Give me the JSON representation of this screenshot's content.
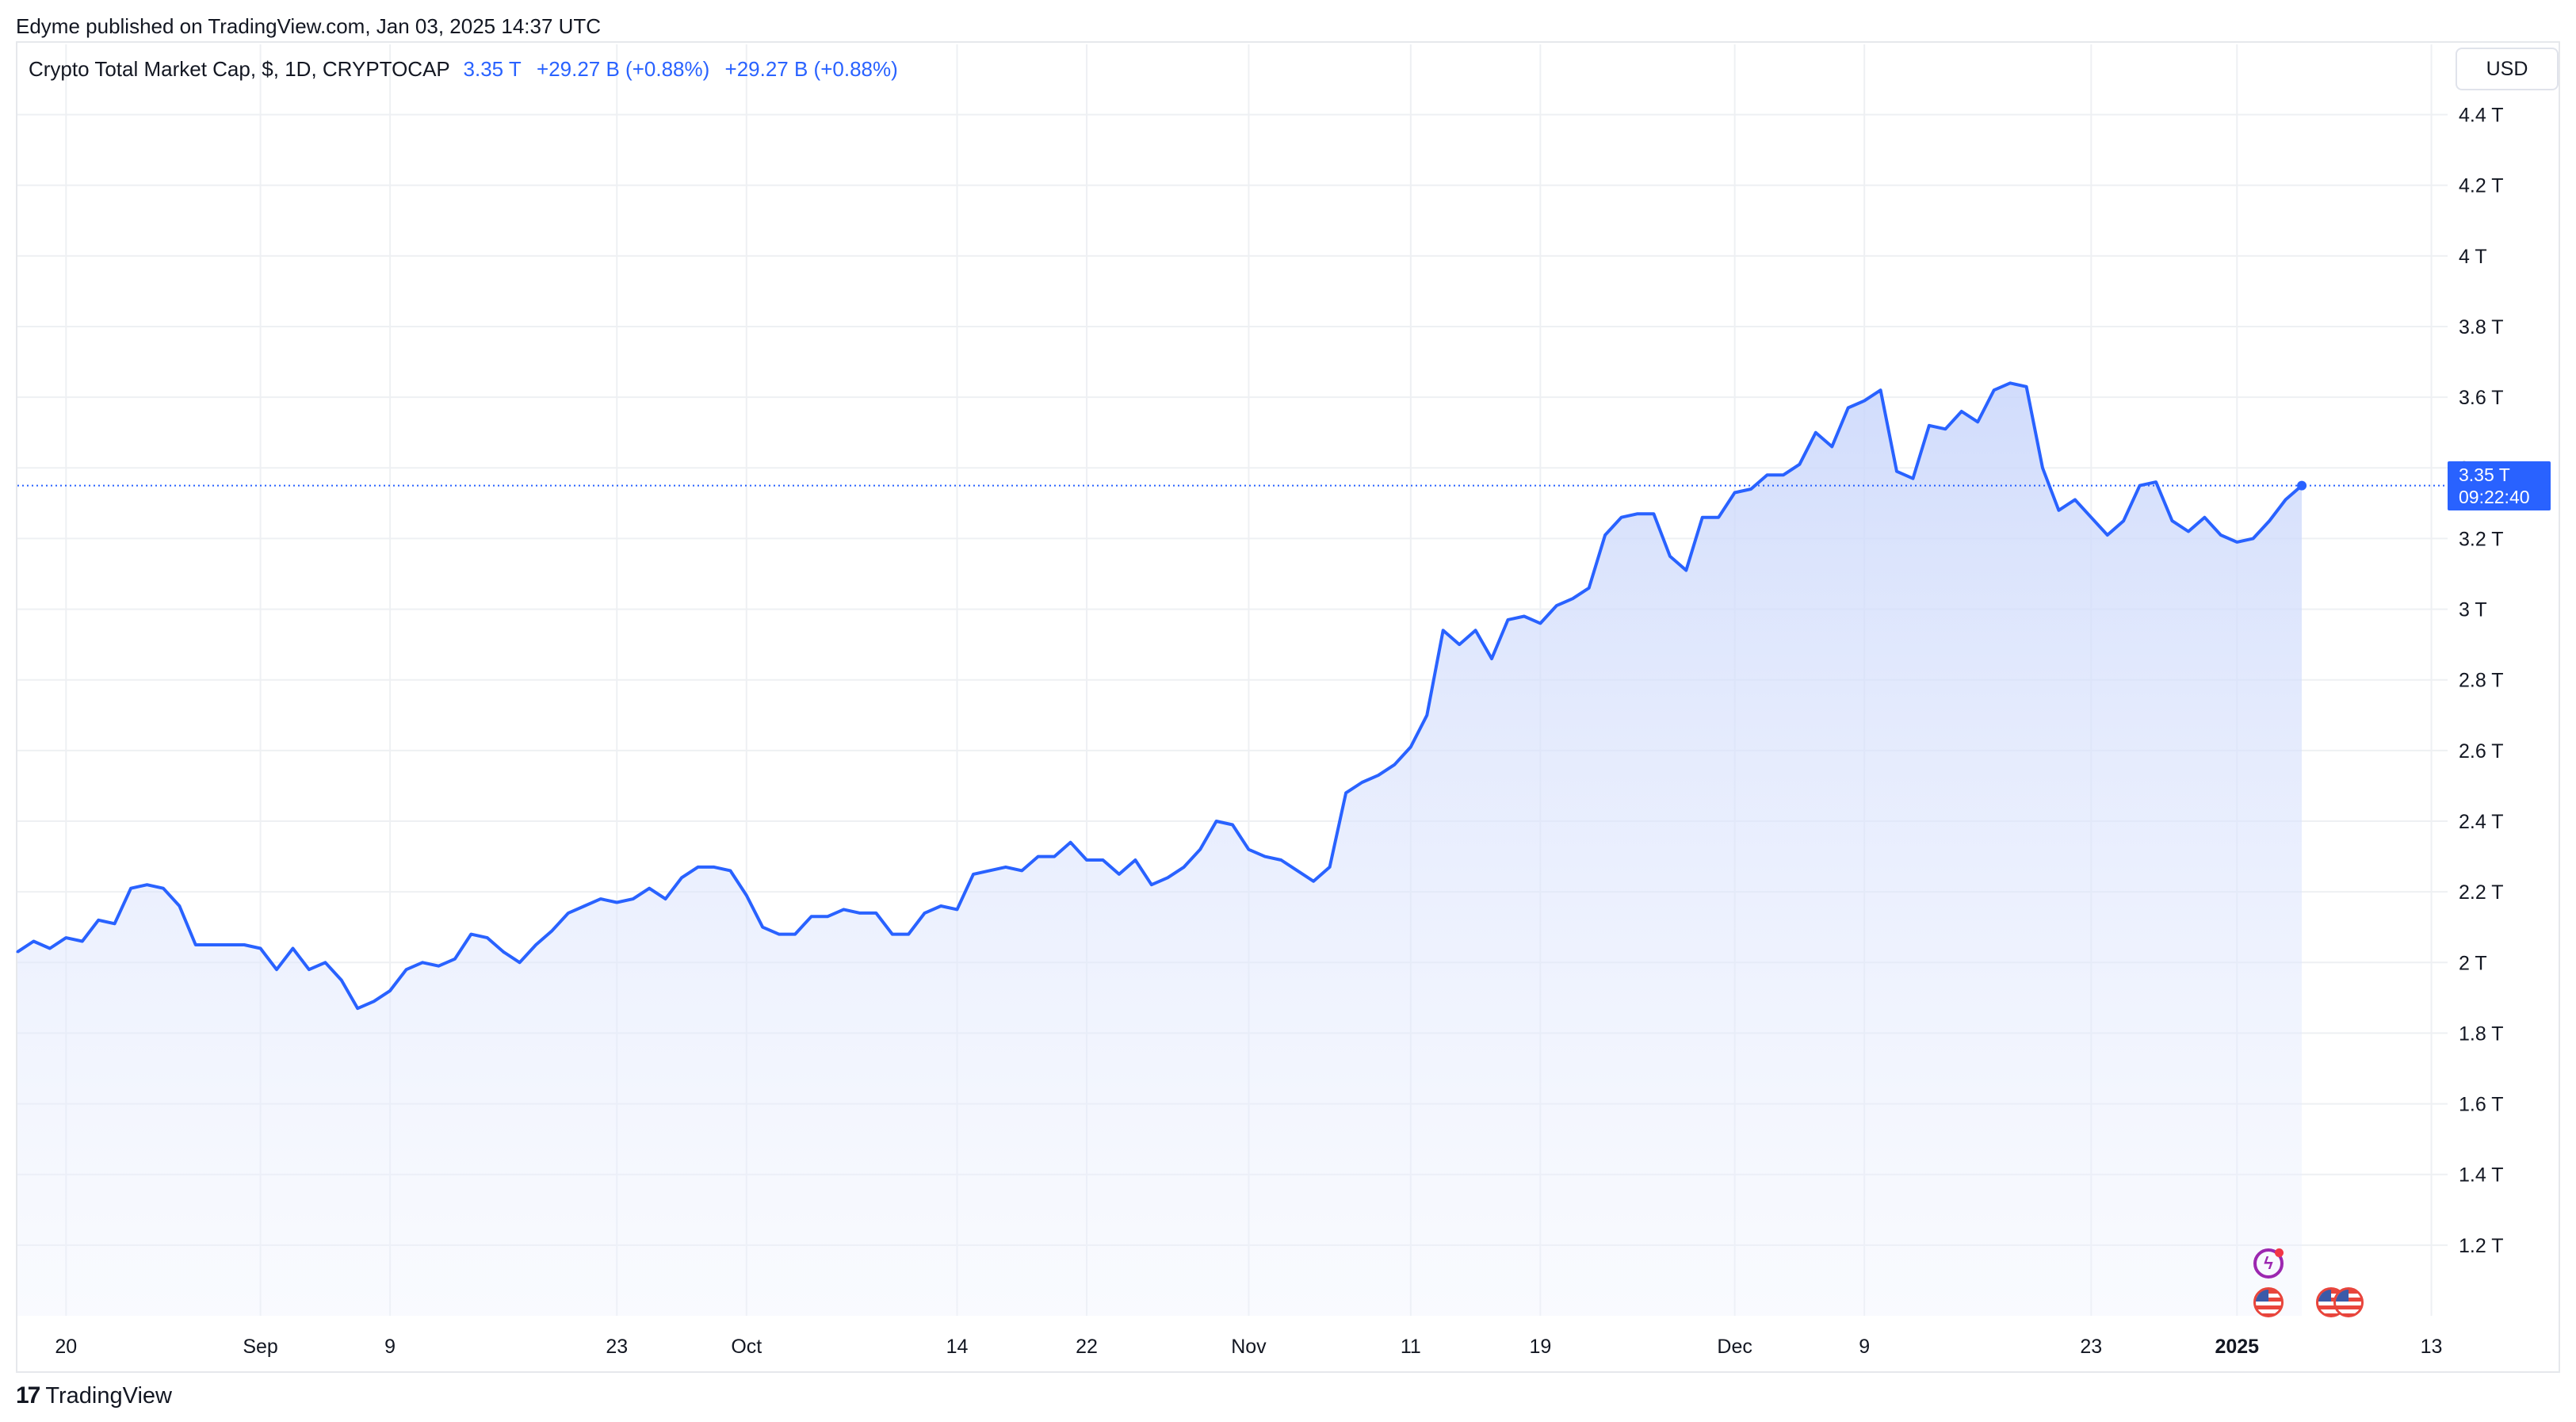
{
  "header": {
    "publisher_line": "Edyme published on TradingView.com, Jan 03, 2025 14:37 UTC"
  },
  "legend": {
    "symbol": "Crypto Total Market Cap, $, 1D, CRYPTOCAP",
    "last": "3.35 T",
    "change1": "+29.27 B (+0.88%)",
    "change2": "+29.27 B (+0.88%)"
  },
  "currency_button": "USD",
  "price_label": {
    "value": "3.35 T",
    "countdown": "09:22:40"
  },
  "footer": {
    "brand_mark": "17",
    "brand": "TradingView"
  },
  "colors": {
    "line": "#2962ff",
    "fill_top": "#c9d6fb",
    "grid": "#eef0f3",
    "text": "#131722"
  },
  "icons": {
    "events": [
      "flash-event-icon",
      "us-flag-event-icon",
      "us-flag-event-icon",
      "us-flag-event-icon"
    ]
  },
  "chart_data": {
    "type": "area",
    "title": "Crypto Total Market Cap, $, 1D, CRYPTOCAP",
    "unit": "USD",
    "x_start": "2024-08-17",
    "x_end": "2025-01-03",
    "xlim": [
      "2024-08-17",
      "2025-01-14"
    ],
    "ylim": [
      1.0,
      4.5
    ],
    "y_ticks": [
      "1.2 T",
      "1.4 T",
      "1.6 T",
      "1.8 T",
      "2 T",
      "2.2 T",
      "2.4 T",
      "2.6 T",
      "2.8 T",
      "3 T",
      "3.2 T",
      "3.4 T",
      "3.6 T",
      "3.8 T",
      "4 T",
      "4.2 T",
      "4.4 T"
    ],
    "y_tick_values": [
      1.2,
      1.4,
      1.6,
      1.8,
      2.0,
      2.2,
      2.4,
      2.6,
      2.8,
      3.0,
      3.2,
      3.4,
      3.6,
      3.8,
      4.0,
      4.2,
      4.4
    ],
    "x_ticks": [
      {
        "label": "20",
        "date": "2024-08-20",
        "bold": false
      },
      {
        "label": "Sep",
        "date": "2024-09-01",
        "bold": false
      },
      {
        "label": "9",
        "date": "2024-09-09",
        "bold": false
      },
      {
        "label": "23",
        "date": "2024-09-23",
        "bold": false
      },
      {
        "label": "Oct",
        "date": "2024-10-01",
        "bold": false
      },
      {
        "label": "14",
        "date": "2024-10-14",
        "bold": false
      },
      {
        "label": "22",
        "date": "2024-10-22",
        "bold": false
      },
      {
        "label": "Nov",
        "date": "2024-11-01",
        "bold": false
      },
      {
        "label": "11",
        "date": "2024-11-11",
        "bold": false
      },
      {
        "label": "19",
        "date": "2024-11-19",
        "bold": false
      },
      {
        "label": "Dec",
        "date": "2024-12-01",
        "bold": false
      },
      {
        "label": "9",
        "date": "2024-12-09",
        "bold": false
      },
      {
        "label": "23",
        "date": "2024-12-23",
        "bold": false
      },
      {
        "label": "2025",
        "date": "2025-01-01",
        "bold": true
      },
      {
        "label": "13",
        "date": "2025-01-13",
        "bold": false
      }
    ],
    "grid": true,
    "last_value": 3.35,
    "series": [
      {
        "name": "Crypto Total Market Cap",
        "values": [
          2.03,
          2.06,
          2.04,
          2.07,
          2.06,
          2.12,
          2.11,
          2.21,
          2.22,
          2.21,
          2.16,
          2.05,
          2.05,
          2.05,
          2.05,
          2.04,
          1.98,
          2.04,
          1.98,
          2.0,
          1.95,
          1.87,
          1.89,
          1.92,
          1.98,
          2.0,
          1.99,
          2.01,
          2.08,
          2.07,
          2.03,
          2.0,
          2.05,
          2.09,
          2.14,
          2.16,
          2.18,
          2.17,
          2.18,
          2.21,
          2.18,
          2.24,
          2.27,
          2.27,
          2.26,
          2.19,
          2.1,
          2.08,
          2.08,
          2.13,
          2.13,
          2.15,
          2.14,
          2.14,
          2.08,
          2.08,
          2.14,
          2.16,
          2.15,
          2.25,
          2.26,
          2.27,
          2.26,
          2.3,
          2.3,
          2.34,
          2.29,
          2.29,
          2.25,
          2.29,
          2.22,
          2.24,
          2.27,
          2.32,
          2.4,
          2.39,
          2.32,
          2.3,
          2.29,
          2.26,
          2.23,
          2.27,
          2.48,
          2.51,
          2.53,
          2.56,
          2.61,
          2.7,
          2.94,
          2.9,
          2.94,
          2.86,
          2.97,
          2.98,
          2.96,
          3.01,
          3.03,
          3.06,
          3.21,
          3.26,
          3.27,
          3.27,
          3.15,
          3.11,
          3.26,
          3.26,
          3.33,
          3.34,
          3.38,
          3.38,
          3.41,
          3.5,
          3.46,
          3.57,
          3.59,
          3.62,
          3.39,
          3.37,
          3.52,
          3.51,
          3.56,
          3.53,
          3.62,
          3.64,
          3.63,
          3.4,
          3.28,
          3.31,
          3.26,
          3.21,
          3.25,
          3.35,
          3.36,
          3.25,
          3.22,
          3.26,
          3.21,
          3.19,
          3.2,
          3.25,
          3.31,
          3.35
        ]
      }
    ]
  }
}
